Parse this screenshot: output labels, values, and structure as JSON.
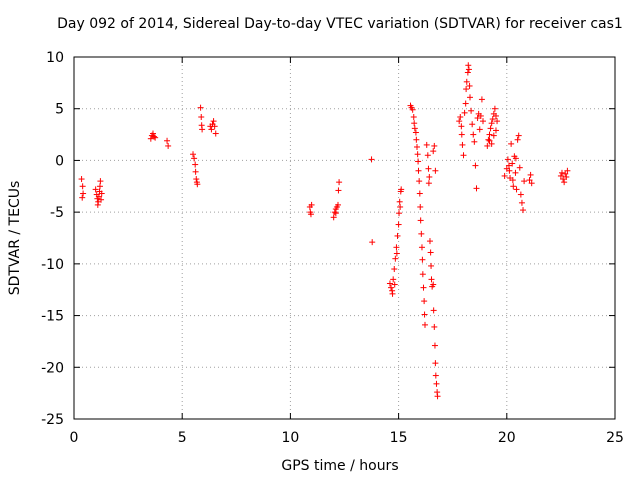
{
  "chart_data": {
    "type": "scatter",
    "title": "Day 092 of 2014, Sidereal Day-to-day VTEC variation (SDTVAR) for receiver cas1",
    "xlabel": "GPS time / hours",
    "ylabel": "SDTVAR / TECUs",
    "xlim": [
      0,
      25
    ],
    "ylim": [
      -25,
      10
    ],
    "xticks": [
      "0",
      "5",
      "10",
      "15",
      "20",
      "25"
    ],
    "yticks": [
      "-25",
      "-20",
      "-15",
      "-10",
      "-5",
      "0",
      "5",
      "10"
    ],
    "grid": true,
    "marker": "+",
    "color": "#ff0000",
    "series": [
      {
        "name": "SDTVAR",
        "points": [
          [
            0.35,
            -1.8
          ],
          [
            0.4,
            -2.5
          ],
          [
            0.42,
            -3.2
          ],
          [
            0.38,
            -3.6
          ],
          [
            1.0,
            -2.8
          ],
          [
            1.05,
            -3.3
          ],
          [
            1.08,
            -3.7
          ],
          [
            1.12,
            -4.0
          ],
          [
            1.15,
            -3.5
          ],
          [
            1.18,
            -3.0
          ],
          [
            1.2,
            -2.5
          ],
          [
            1.22,
            -2.0
          ],
          [
            1.25,
            -3.8
          ],
          [
            1.28,
            -3.2
          ],
          [
            1.1,
            -4.3
          ],
          [
            3.55,
            2.1
          ],
          [
            3.6,
            2.4
          ],
          [
            3.65,
            2.6
          ],
          [
            3.7,
            2.3
          ],
          [
            3.75,
            2.2
          ],
          [
            4.3,
            1.9
          ],
          [
            4.35,
            1.4
          ],
          [
            5.5,
            0.6
          ],
          [
            5.55,
            0.2
          ],
          [
            5.6,
            -0.4
          ],
          [
            5.62,
            -1.1
          ],
          [
            5.65,
            -1.8
          ],
          [
            5.68,
            -2.1
          ],
          [
            5.7,
            -2.3
          ],
          [
            5.85,
            5.1
          ],
          [
            5.88,
            4.2
          ],
          [
            5.9,
            3.4
          ],
          [
            5.92,
            3.0
          ],
          [
            6.35,
            3.0
          ],
          [
            6.4,
            3.5
          ],
          [
            6.45,
            3.8
          ],
          [
            6.5,
            3.3
          ],
          [
            6.55,
            2.6
          ],
          [
            6.3,
            3.3
          ],
          [
            10.9,
            -4.5
          ],
          [
            10.92,
            -5.0
          ],
          [
            10.95,
            -5.2
          ],
          [
            10.98,
            -4.3
          ],
          [
            12.0,
            -5.5
          ],
          [
            12.05,
            -5.0
          ],
          [
            12.1,
            -4.7
          ],
          [
            12.15,
            -4.5
          ],
          [
            12.2,
            -4.3
          ],
          [
            12.22,
            -2.9
          ],
          [
            12.25,
            -2.1
          ],
          [
            12.1,
            -5.1
          ],
          [
            13.75,
            0.1
          ],
          [
            13.78,
            -7.9
          ],
          [
            14.6,
            -11.9
          ],
          [
            14.65,
            -12.3
          ],
          [
            14.7,
            -12.6
          ],
          [
            14.75,
            -11.5
          ],
          [
            14.8,
            -10.5
          ],
          [
            14.85,
            -9.5
          ],
          [
            14.9,
            -8.4
          ],
          [
            14.95,
            -7.3
          ],
          [
            15.0,
            -6.2
          ],
          [
            15.02,
            -5.1
          ],
          [
            15.05,
            -4.0
          ],
          [
            15.1,
            -3.0
          ],
          [
            14.72,
            -12.9
          ],
          [
            14.82,
            -12.0
          ],
          [
            14.92,
            -9.0
          ],
          [
            15.07,
            -4.5
          ],
          [
            15.12,
            -2.8
          ],
          [
            15.55,
            5.3
          ],
          [
            15.6,
            5.1
          ],
          [
            15.65,
            4.9
          ],
          [
            15.7,
            4.2
          ],
          [
            15.72,
            3.6
          ],
          [
            15.75,
            3.1
          ],
          [
            15.8,
            2.7
          ],
          [
            15.82,
            2.0
          ],
          [
            15.85,
            1.3
          ],
          [
            15.88,
            0.6
          ],
          [
            15.9,
            -0.1
          ],
          [
            15.92,
            -1.0
          ],
          [
            15.95,
            -2.0
          ],
          [
            15.98,
            -3.2
          ],
          [
            16.0,
            -4.5
          ],
          [
            16.02,
            -5.8
          ],
          [
            16.05,
            -7.1
          ],
          [
            16.08,
            -8.4
          ],
          [
            16.1,
            -9.6
          ],
          [
            16.12,
            -11.0
          ],
          [
            16.15,
            -12.3
          ],
          [
            16.18,
            -13.6
          ],
          [
            16.2,
            -14.9
          ],
          [
            16.22,
            -15.9
          ],
          [
            16.3,
            1.5
          ],
          [
            16.35,
            0.5
          ],
          [
            16.38,
            -0.8
          ],
          [
            16.4,
            -2.2
          ],
          [
            16.42,
            -1.6
          ],
          [
            16.45,
            -7.8
          ],
          [
            16.48,
            -8.9
          ],
          [
            16.5,
            -10.2
          ],
          [
            16.52,
            -11.5
          ],
          [
            16.55,
            -12.2
          ],
          [
            16.6,
            -12.0
          ],
          [
            16.62,
            -14.5
          ],
          [
            16.65,
            -16.1
          ],
          [
            16.68,
            -17.9
          ],
          [
            16.7,
            -19.6
          ],
          [
            16.72,
            -20.8
          ],
          [
            16.75,
            -21.6
          ],
          [
            16.78,
            -22.4
          ],
          [
            16.8,
            -22.8
          ],
          [
            16.6,
            0.9
          ],
          [
            16.65,
            1.4
          ],
          [
            16.7,
            -1.0
          ],
          [
            17.8,
            3.8
          ],
          [
            17.85,
            4.2
          ],
          [
            17.9,
            3.3
          ],
          [
            17.92,
            2.5
          ],
          [
            17.95,
            1.5
          ],
          [
            18.0,
            0.5
          ],
          [
            18.05,
            4.6
          ],
          [
            18.1,
            5.5
          ],
          [
            18.12,
            6.9
          ],
          [
            18.15,
            7.6
          ],
          [
            18.2,
            8.5
          ],
          [
            18.22,
            9.2
          ],
          [
            18.25,
            8.8
          ],
          [
            18.28,
            7.2
          ],
          [
            18.3,
            6.1
          ],
          [
            18.35,
            4.8
          ],
          [
            18.4,
            3.5
          ],
          [
            18.45,
            2.5
          ],
          [
            18.5,
            1.8
          ],
          [
            18.55,
            -0.5
          ],
          [
            18.6,
            -2.7
          ],
          [
            18.65,
            4.1
          ],
          [
            18.7,
            4.5
          ],
          [
            18.75,
            3.0
          ],
          [
            18.8,
            4.3
          ],
          [
            18.85,
            5.9
          ],
          [
            18.9,
            3.8
          ],
          [
            19.1,
            1.4
          ],
          [
            19.15,
            2.0
          ],
          [
            19.2,
            2.5
          ],
          [
            19.25,
            3.1
          ],
          [
            19.3,
            3.6
          ],
          [
            19.35,
            4.0
          ],
          [
            19.4,
            4.5
          ],
          [
            19.45,
            5.0
          ],
          [
            19.5,
            4.3
          ],
          [
            19.55,
            3.8
          ],
          [
            19.3,
            1.6
          ],
          [
            19.4,
            2.4
          ],
          [
            19.5,
            2.9
          ],
          [
            19.2,
            1.9
          ],
          [
            19.9,
            -1.5
          ],
          [
            20.0,
            -0.8
          ],
          [
            20.05,
            0.1
          ],
          [
            20.1,
            -0.5
          ],
          [
            20.15,
            -1.7
          ],
          [
            20.2,
            1.6
          ],
          [
            20.25,
            -0.3
          ],
          [
            20.3,
            -2.5
          ],
          [
            20.35,
            0.4
          ],
          [
            20.4,
            -1.2
          ],
          [
            20.45,
            -2.8
          ],
          [
            20.5,
            2.0
          ],
          [
            20.55,
            2.4
          ],
          [
            20.6,
            -0.7
          ],
          [
            20.65,
            -3.3
          ],
          [
            20.7,
            -4.1
          ],
          [
            20.75,
            -4.8
          ],
          [
            20.8,
            -2.0
          ],
          [
            21.05,
            -1.9
          ],
          [
            21.1,
            -1.4
          ],
          [
            21.15,
            -2.2
          ],
          [
            20.12,
            -1.0
          ],
          [
            20.28,
            -1.9
          ],
          [
            20.42,
            0.2
          ],
          [
            22.5,
            -1.5
          ],
          [
            22.55,
            -1.2
          ],
          [
            22.6,
            -1.8
          ],
          [
            22.65,
            -2.1
          ],
          [
            22.7,
            -1.3
          ],
          [
            22.75,
            -1.6
          ],
          [
            22.8,
            -1.0
          ]
        ]
      }
    ]
  }
}
